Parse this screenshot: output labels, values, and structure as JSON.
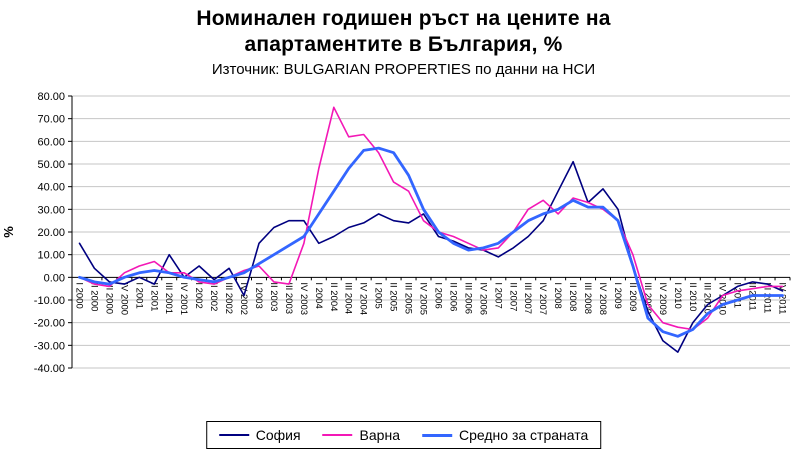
{
  "chart_data": {
    "type": "line",
    "title_line1": "Номинален годишен ръст на цените на",
    "title_line2": "апартаментите в България, %",
    "subtitle": "Източник: BULGARIAN PROPERTIES по данни на НСИ",
    "ylabel": "%",
    "ylim": [
      -40,
      80
    ],
    "ytick_step": 10,
    "grid": true,
    "legend_position": "bottom",
    "axis_color": "#000000",
    "grid_color": "#c6c6c6",
    "categories": [
      "I 2000",
      "II 2000",
      "III 2000",
      "IV 2000",
      "I 2001",
      "II 2001",
      "III 2001",
      "IV 2001",
      "I 2002",
      "II 2002",
      "III 2002",
      "IV 2002",
      "I 2003",
      "II 2003",
      "III 2003",
      "IV 2003",
      "I 2004",
      "II 2004",
      "III 2004",
      "IV 2004",
      "I 2005",
      "II 2005",
      "III 2005",
      "IV 2005",
      "I 2006",
      "II 2006",
      "III 2006",
      "IV 2006",
      "I 2007",
      "II 2007",
      "III 2007",
      "IV 2007",
      "I 2008",
      "II 2008",
      "III 2008",
      "IV 2008",
      "I 2009",
      "II 2009",
      "III 2009",
      "IV 2009",
      "I 2010",
      "II 2010",
      "III 2010",
      "IV 2010",
      "I 2011",
      "II 2011",
      "III 2011",
      "IV 2011"
    ],
    "series": [
      {
        "name": "София",
        "color": "#000080",
        "width": 1.6,
        "values": [
          15,
          4,
          -2,
          -3,
          0,
          -3,
          10,
          0,
          5,
          -1,
          4,
          -8,
          15,
          22,
          25,
          25,
          15,
          18,
          22,
          24,
          28,
          25,
          24,
          28,
          18,
          16,
          13,
          12,
          9,
          13,
          18,
          25,
          38,
          51,
          33,
          39,
          30,
          5,
          -15,
          -28,
          -33,
          -20,
          -12,
          -8,
          -4,
          -2,
          -3,
          -6
        ]
      },
      {
        "name": "Варна",
        "color": "#f318b6",
        "width": 1.6,
        "values": [
          0,
          -3,
          -4,
          2,
          5,
          7,
          2,
          2,
          -2,
          -3,
          0,
          3,
          5,
          -2,
          -3,
          15,
          48,
          75,
          62,
          63,
          55,
          42,
          38,
          25,
          20,
          18,
          15,
          12,
          13,
          20,
          30,
          34,
          28,
          35,
          33,
          30,
          25,
          10,
          -12,
          -20,
          -22,
          -23,
          -18,
          -8,
          -6,
          -5,
          -4,
          -4
        ]
      },
      {
        "name": "Средно за страната",
        "color": "#3366ff",
        "width": 2.8,
        "values": [
          0,
          -2,
          -3,
          0,
          2,
          3,
          2,
          0,
          -1,
          -2,
          0,
          2,
          6,
          10,
          14,
          18,
          28,
          38,
          48,
          56,
          57,
          55,
          45,
          30,
          20,
          15,
          12,
          13,
          15,
          20,
          25,
          28,
          30,
          34,
          31,
          31,
          25,
          5,
          -18,
          -24,
          -26,
          -23,
          -16,
          -12,
          -10,
          -8,
          -8,
          -8
        ]
      }
    ]
  }
}
